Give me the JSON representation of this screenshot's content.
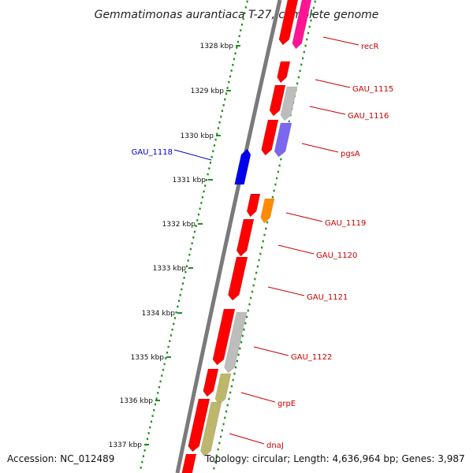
{
  "title": "Gemmatimonas aurantiaca T-27, complete genome",
  "footer": {
    "accession": "Accession: NC_012489",
    "topology": "Topology: circular; Length: 4,636,964 bp; Genes: 3,987"
  },
  "colors": {
    "backbone": "#7a7a7a",
    "dots": "#1f8f1f",
    "tick": "#1f8f1f",
    "label_red": "#cc0000",
    "label_blue": "#0000cc",
    "gene_red": "#ff0000",
    "gene_blue": "#0000ee",
    "gene_magenta": "#ff1493",
    "gene_gray": "#bdbdbd",
    "gene_purple": "#7b68ee",
    "gene_orange": "#ff8c00",
    "gene_olive": "#bdb76b"
  },
  "ticks": [
    {
      "label": "1328 kbp",
      "kbp": 1328
    },
    {
      "label": "1329 kbp",
      "kbp": 1329
    },
    {
      "label": "1330 kbp",
      "kbp": 1330
    },
    {
      "label": "1331 kbp",
      "kbp": 1331
    },
    {
      "label": "1332 kbp",
      "kbp": 1332
    },
    {
      "label": "1333 kbp",
      "kbp": 1333
    },
    {
      "label": "1334 kbp",
      "kbp": 1334
    },
    {
      "label": "1335 kbp",
      "kbp": 1335
    },
    {
      "label": "1336 kbp",
      "kbp": 1336
    },
    {
      "label": "1337 kbp",
      "kbp": 1337
    }
  ],
  "labels": [
    {
      "text": "recR",
      "color": "red"
    },
    {
      "text": "GAU_1115",
      "color": "red"
    },
    {
      "text": "GAU_1116",
      "color": "red"
    },
    {
      "text": "pgsA",
      "color": "red"
    },
    {
      "text": "GAU_1118",
      "color": "blue"
    },
    {
      "text": "GAU_1119",
      "color": "red"
    },
    {
      "text": "GAU_1120",
      "color": "red"
    },
    {
      "text": "GAU_1121",
      "color": "red"
    },
    {
      "text": "GAU_1122",
      "color": "red"
    },
    {
      "text": "grpE",
      "color": "red"
    },
    {
      "text": "dnaJ",
      "color": "red"
    }
  ]
}
